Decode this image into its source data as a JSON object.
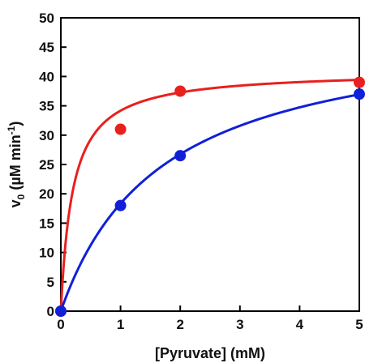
{
  "chart_data": {
    "type": "scatter",
    "title": "",
    "xlabel": "[Pyruvate] (mM)",
    "ylabel": "v0 (µM min-1)",
    "ylabel_parts": {
      "main": "v",
      "sub": "0",
      "units_open": " (µM min",
      "sup": "-1",
      "units_close": ")"
    },
    "xlim": [
      0,
      5
    ],
    "ylim": [
      0,
      50
    ],
    "x_ticks": [
      0,
      1,
      2,
      3,
      4,
      5
    ],
    "y_ticks": [
      0,
      5,
      10,
      15,
      20,
      25,
      30,
      35,
      40,
      45,
      50
    ],
    "grid": false,
    "legend": "none",
    "series": [
      {
        "color": "#e8201e",
        "x": [
          0,
          1,
          2,
          5
        ],
        "y": [
          0,
          31,
          37.5,
          39
        ],
        "fit": {
          "model": "michaelis-menten",
          "vmax": 41,
          "km": 0.2
        }
      },
      {
        "color": "#1020d8",
        "x": [
          0,
          1,
          2,
          5
        ],
        "y": [
          0,
          18,
          26.5,
          37
        ],
        "fit": {
          "model": "michaelis-menten",
          "vmax": 49.5,
          "km": 1.7
        }
      }
    ]
  }
}
